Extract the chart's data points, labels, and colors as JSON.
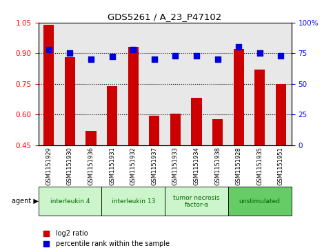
{
  "title": "GDS5261 / A_23_P47102",
  "samples": [
    "GSM1151929",
    "GSM1151930",
    "GSM1151936",
    "GSM1151931",
    "GSM1151932",
    "GSM1151937",
    "GSM1151933",
    "GSM1151934",
    "GSM1151938",
    "GSM1151928",
    "GSM1151935",
    "GSM1151951"
  ],
  "log2_ratio": [
    1.04,
    0.88,
    0.52,
    0.74,
    0.93,
    0.595,
    0.605,
    0.68,
    0.575,
    0.92,
    0.82,
    0.75
  ],
  "percentile": [
    78,
    75,
    70,
    72,
    78,
    70,
    73,
    73,
    70,
    80,
    75,
    73
  ],
  "agents": [
    {
      "label": "interleukin 4",
      "start": 0,
      "end": 3,
      "color": "#ccf5cc"
    },
    {
      "label": "interleukin 13",
      "start": 3,
      "end": 6,
      "color": "#ccf5cc"
    },
    {
      "label": "tumor necrosis\nfactor-α",
      "start": 6,
      "end": 9,
      "color": "#ccf5cc"
    },
    {
      "label": "unstimulated",
      "start": 9,
      "end": 12,
      "color": "#66cc66"
    }
  ],
  "ylim_left": [
    0.45,
    1.05
  ],
  "ylim_right": [
    0,
    100
  ],
  "yticks_left": [
    0.45,
    0.6,
    0.75,
    0.9,
    1.05
  ],
  "yticks_right": [
    0,
    25,
    50,
    75,
    100
  ],
  "hlines": [
    0.6,
    0.75,
    0.9
  ],
  "bar_color": "#cc0000",
  "dot_color": "#0000dd",
  "bar_width": 0.5,
  "dot_size": 28,
  "bg_color": "#e8e8e8"
}
